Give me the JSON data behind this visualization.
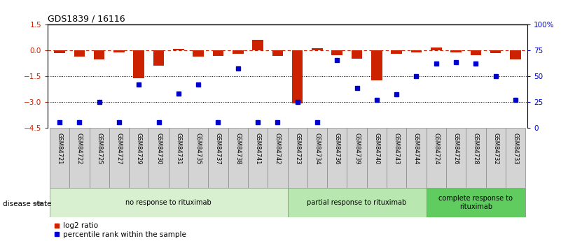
{
  "title": "GDS1839 / 16116",
  "samples": [
    "GSM84721",
    "GSM84722",
    "GSM84725",
    "GSM84727",
    "GSM84729",
    "GSM84730",
    "GSM84731",
    "GSM84735",
    "GSM84737",
    "GSM84738",
    "GSM84741",
    "GSM84742",
    "GSM84723",
    "GSM84734",
    "GSM84736",
    "GSM84739",
    "GSM84740",
    "GSM84743",
    "GSM84744",
    "GSM84724",
    "GSM84726",
    "GSM84728",
    "GSM84732",
    "GSM84733"
  ],
  "log2_ratio": [
    -0.18,
    -0.4,
    -0.55,
    -0.12,
    -1.65,
    -0.9,
    0.05,
    -0.4,
    -0.35,
    -0.2,
    0.6,
    -0.35,
    -3.1,
    0.12,
    -0.3,
    -0.5,
    -1.75,
    -0.2,
    -0.15,
    0.15,
    -0.12,
    -0.28,
    -0.18,
    -0.55
  ],
  "percentile_pct": [
    5,
    5,
    25,
    5,
    42,
    5,
    33,
    42,
    5,
    57,
    5,
    5,
    25,
    5,
    65,
    38,
    27,
    32,
    50,
    62,
    63,
    62,
    50,
    27
  ],
  "group_labels": [
    "no response to rituximab",
    "partial response to rituximab",
    "complete response to\nrituximab"
  ],
  "group_colors": [
    "#d8f0d0",
    "#b8e8b0",
    "#60cc60"
  ],
  "group_sizes": [
    12,
    7,
    5
  ],
  "group_starts": [
    0,
    12,
    19
  ],
  "ylim_left": [
    -4.5,
    1.5
  ],
  "ylim_right": [
    0,
    100
  ],
  "yticks_left": [
    1.5,
    0,
    -1.5,
    -3,
    -4.5
  ],
  "yticks_right": [
    100,
    75,
    50,
    25,
    0
  ],
  "bar_color": "#cc2200",
  "dot_color": "#0000cc",
  "dotted_lines": [
    -1.5,
    -3
  ],
  "disease_state_label": "disease state",
  "legend_items": [
    "log2 ratio",
    "percentile rank within the sample"
  ],
  "n_samples": 24
}
